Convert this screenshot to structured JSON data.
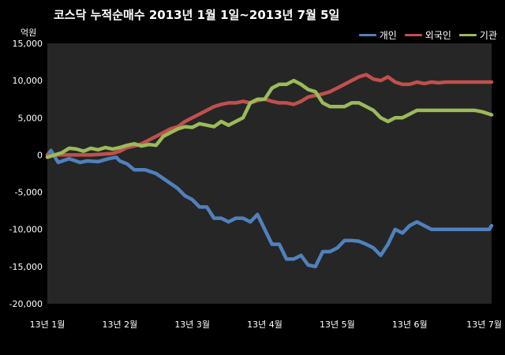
{
  "chart_data": {
    "type": "line",
    "title": "코스닥  누적순매수 2013년 1월 1일~2013년 7월 5일",
    "ylabel": "억원",
    "xlabel": "",
    "ylim": [
      -20000,
      15000
    ],
    "yticks": [
      15000,
      10000,
      5000,
      0,
      -5000,
      -10000,
      -15000,
      -20000
    ],
    "ytick_labels": [
      "15,000",
      "10,000",
      "5,000",
      "0",
      "-5,000",
      "-10,000",
      "-15,000",
      "-20,000"
    ],
    "x_tick_labels": [
      "13년 1월",
      "13년 2월",
      "13년 3월",
      "13년 4월",
      "13년 5월",
      "13년 6월",
      "13년 7월"
    ],
    "x_tick_positions": [
      0,
      1,
      2,
      3,
      4,
      5,
      6.13
    ],
    "xlim": [
      0,
      6.13
    ],
    "grid": false,
    "legend": "top-right",
    "colors": {
      "background": "#000000",
      "plot_area": "#262626"
    },
    "series": [
      {
        "name": "개인",
        "color": "#4f81bd",
        "x": [
          0,
          0.05,
          0.15,
          0.3,
          0.45,
          0.55,
          0.7,
          0.85,
          0.95,
          1.0,
          1.1,
          1.2,
          1.35,
          1.5,
          1.65,
          1.8,
          1.9,
          2.0,
          2.1,
          2.2,
          2.3,
          2.4,
          2.5,
          2.6,
          2.7,
          2.8,
          2.9,
          3.0,
          3.1,
          3.2,
          3.3,
          3.4,
          3.5,
          3.6,
          3.7,
          3.8,
          3.9,
          4.0,
          4.1,
          4.2,
          4.3,
          4.4,
          4.5,
          4.6,
          4.7,
          4.8,
          4.9,
          5.0,
          5.1,
          5.2,
          5.3,
          5.4,
          5.5,
          5.6,
          5.7,
          5.8,
          5.9,
          6.0,
          6.1,
          6.13
        ],
        "values": [
          0,
          600,
          -1000,
          -500,
          -1000,
          -800,
          -900,
          -500,
          -300,
          -800,
          -1200,
          -2000,
          -2000,
          -2500,
          -3500,
          -4500,
          -5500,
          -6000,
          -7000,
          -7000,
          -8500,
          -8500,
          -9000,
          -8500,
          -8500,
          -9000,
          -8000,
          -10000,
          -12000,
          -12000,
          -14000,
          -14000,
          -13500,
          -14800,
          -15000,
          -13000,
          -13000,
          -12500,
          -11500,
          -11500,
          -11600,
          -12000,
          -12500,
          -13500,
          -12000,
          -10000,
          -10500,
          -9500,
          -9000,
          -9500,
          -10000,
          -10000,
          -10000,
          -10000,
          -10000,
          -10000,
          -10000,
          -10000,
          -10000,
          -9500
        ]
      },
      {
        "name": "외국인",
        "color": "#c0504d",
        "x": [
          0,
          0.15,
          0.3,
          0.45,
          0.6,
          0.75,
          0.9,
          1.0,
          1.1,
          1.2,
          1.3,
          1.4,
          1.5,
          1.6,
          1.7,
          1.8,
          1.9,
          2.0,
          2.1,
          2.2,
          2.3,
          2.4,
          2.5,
          2.6,
          2.7,
          2.8,
          2.9,
          3.0,
          3.1,
          3.2,
          3.3,
          3.4,
          3.5,
          3.6,
          3.7,
          3.8,
          3.9,
          4.0,
          4.1,
          4.2,
          4.3,
          4.4,
          4.5,
          4.6,
          4.7,
          4.8,
          4.9,
          5.0,
          5.1,
          5.2,
          5.3,
          5.4,
          5.5,
          5.6,
          5.7,
          5.8,
          5.9,
          6.0,
          6.1,
          6.13
        ],
        "values": [
          0,
          0,
          0,
          0,
          0,
          100,
          200,
          500,
          1000,
          1200,
          1500,
          2000,
          2500,
          3000,
          3500,
          3800,
          4500,
          5000,
          5500,
          6000,
          6500,
          6800,
          7000,
          7000,
          7200,
          7000,
          7300,
          7500,
          7200,
          7000,
          7000,
          6800,
          7200,
          7800,
          8000,
          8200,
          8500,
          9000,
          9500,
          10000,
          10500,
          10800,
          10200,
          10000,
          10500,
          9800,
          9500,
          9500,
          9800,
          9600,
          9800,
          9700,
          9800,
          9800,
          9800,
          9800,
          9800,
          9800,
          9800,
          9800
        ]
      },
      {
        "name": "기관",
        "color": "#9bbb59",
        "x": [
          0,
          0.1,
          0.2,
          0.3,
          0.4,
          0.5,
          0.6,
          0.7,
          0.8,
          0.9,
          1.0,
          1.1,
          1.2,
          1.3,
          1.4,
          1.5,
          1.6,
          1.7,
          1.8,
          1.9,
          2.0,
          2.1,
          2.2,
          2.3,
          2.4,
          2.5,
          2.6,
          2.7,
          2.8,
          2.9,
          3.0,
          3.1,
          3.2,
          3.3,
          3.4,
          3.5,
          3.6,
          3.7,
          3.8,
          3.9,
          4.0,
          4.1,
          4.2,
          4.3,
          4.4,
          4.5,
          4.6,
          4.7,
          4.8,
          4.9,
          5.0,
          5.1,
          5.2,
          5.3,
          5.4,
          5.5,
          5.6,
          5.7,
          5.8,
          5.9,
          6.0,
          6.1,
          6.13
        ],
        "values": [
          -300,
          0,
          300,
          900,
          800,
          500,
          900,
          700,
          1000,
          800,
          1000,
          1300,
          1500,
          1200,
          1400,
          1300,
          2500,
          3000,
          3500,
          3800,
          3700,
          4200,
          4000,
          3800,
          4500,
          4000,
          4500,
          5000,
          7000,
          7500,
          7500,
          9000,
          9500,
          9500,
          10000,
          9500,
          8800,
          8500,
          7000,
          6500,
          6500,
          6500,
          7000,
          7000,
          6500,
          6000,
          5000,
          4500,
          5000,
          5000,
          5500,
          6000,
          6000,
          6000,
          6000,
          6000,
          6000,
          6000,
          6000,
          6000,
          5800,
          5500,
          5400
        ]
      }
    ]
  }
}
